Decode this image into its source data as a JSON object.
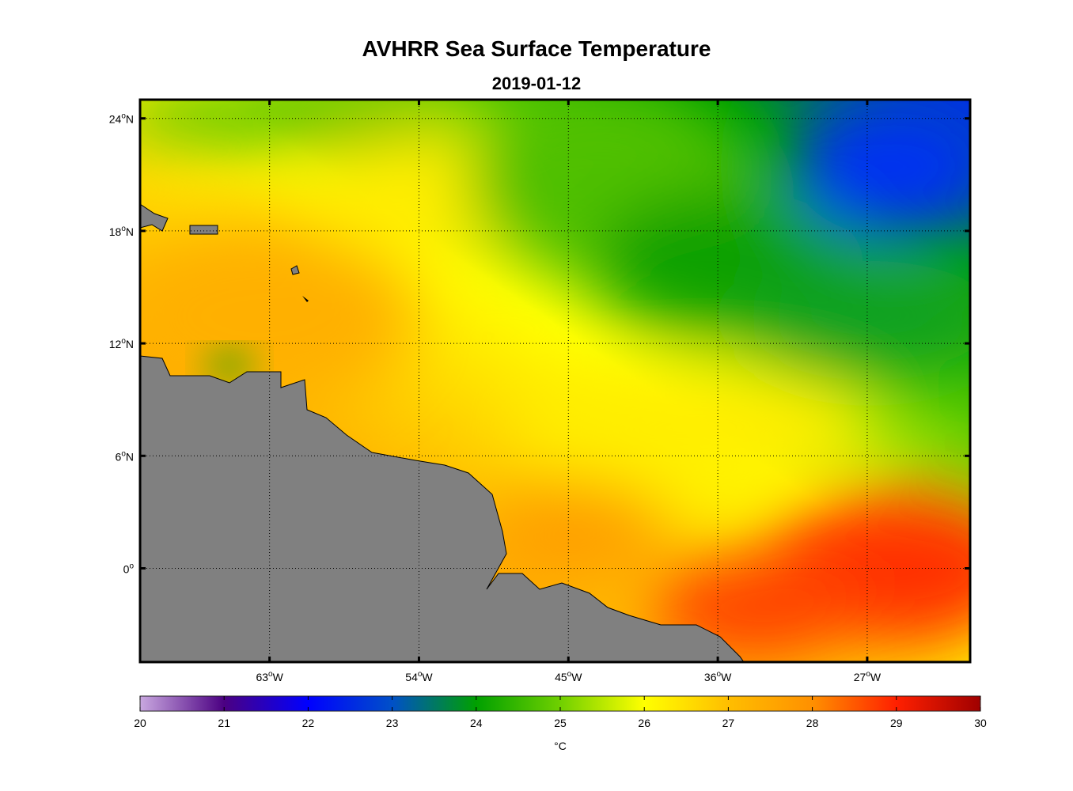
{
  "title": "AVHRR Sea Surface Temperature",
  "date": "2019-01-12",
  "map": {
    "lon_range": [
      -70.8,
      -20.8
    ],
    "lat_range": [
      -5,
      25
    ],
    "grid": "on",
    "lon_ticks": [
      {
        "value": -63,
        "deg": "63",
        "suffix": "W"
      },
      {
        "value": -54,
        "deg": "54",
        "suffix": "W"
      },
      {
        "value": -45,
        "deg": "45",
        "suffix": "W"
      },
      {
        "value": -36,
        "deg": "36",
        "suffix": "W"
      },
      {
        "value": -27,
        "deg": "27",
        "suffix": "W"
      }
    ],
    "lat_ticks": [
      {
        "value": 24,
        "deg": "24",
        "suffix": "N"
      },
      {
        "value": 18,
        "deg": "18",
        "suffix": "N"
      },
      {
        "value": 12,
        "deg": "12",
        "suffix": "N"
      },
      {
        "value": 6,
        "deg": "6",
        "suffix": "N"
      },
      {
        "value": 0,
        "deg": "0",
        "suffix": ""
      }
    ],
    "land_color": "#808080",
    "regions": "warm (27-29 °C) south-east and along the South American coast, cool (22-24 °C) in the north-east"
  },
  "colorbar": {
    "min": 20,
    "max": 30,
    "ticks": [
      "20",
      "21",
      "22",
      "23",
      "24",
      "25",
      "26",
      "27",
      "28",
      "29",
      "30"
    ],
    "unit": "°C",
    "stops": [
      {
        "value": 20,
        "color": "#c9a8e0"
      },
      {
        "value": 21,
        "color": "#4b0082"
      },
      {
        "value": 22,
        "color": "#0000ff"
      },
      {
        "value": 23,
        "color": "#0050c8"
      },
      {
        "value": 24,
        "color": "#00a000"
      },
      {
        "value": 25,
        "color": "#70d000"
      },
      {
        "value": 26,
        "color": "#ffff00"
      },
      {
        "value": 27,
        "color": "#ffbe00"
      },
      {
        "value": 28,
        "color": "#ff9000"
      },
      {
        "value": 29,
        "color": "#ff2000"
      },
      {
        "value": 30,
        "color": "#a00000"
      }
    ]
  }
}
